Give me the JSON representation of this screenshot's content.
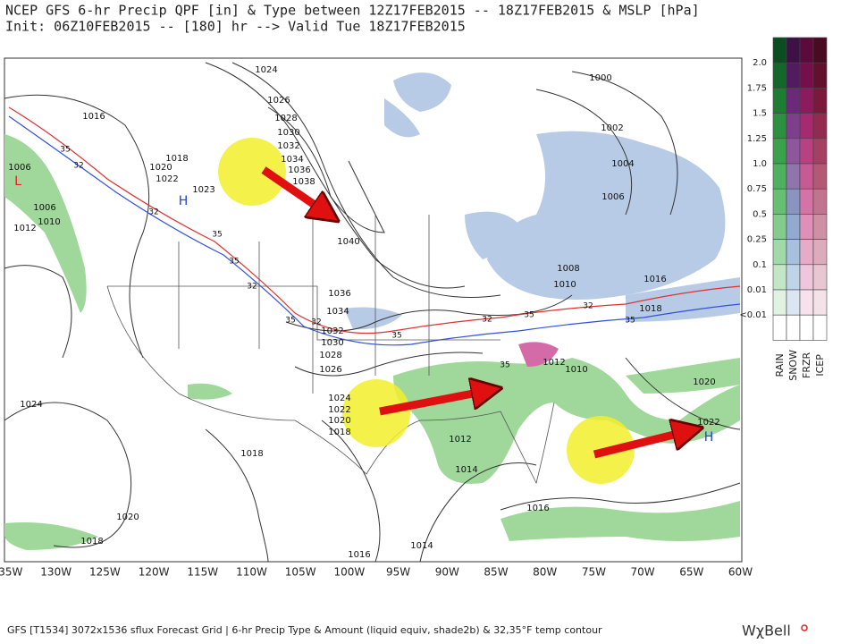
{
  "header": {
    "title": "NCEP GFS 6-hr Precip QPF [in] & Type between 12Z17FEB2015 -- 18Z17FEB2015 & MSLP [hPa]",
    "subtitle": "Init: 06Z10FEB2015 -- [180] hr --> Valid Tue 18Z17FEB2015"
  },
  "map": {
    "longitudes": [
      "135W",
      "130W",
      "125W",
      "120W",
      "115W",
      "110W",
      "105W",
      "100W",
      "95W",
      "90W",
      "85W",
      "80W",
      "75W",
      "70W",
      "65W",
      "60W"
    ],
    "isobar_labels": [
      "1024",
      "1016",
      "1026",
      "1028",
      "1030",
      "1032",
      "1034",
      "1036",
      "1038",
      "1018",
      "1020",
      "1022",
      "1023",
      "1006",
      "1006",
      "1010",
      "1012",
      "1040",
      "1036",
      "1034",
      "1032",
      "1030",
      "1028",
      "1026",
      "1024",
      "1022",
      "1020",
      "1018",
      "1012",
      "1014",
      "1012",
      "1010",
      "1018",
      "1016",
      "1008",
      "1010",
      "1006",
      "1004",
      "1002",
      "1000",
      "1020",
      "1022",
      "1024",
      "1018",
      "1020",
      "1018",
      "1016",
      "1014",
      "1016"
    ],
    "pressure_centers": [
      "H",
      "H",
      "L"
    ],
    "temp_labels": [
      "35",
      "32",
      "32",
      "35",
      "35",
      "32",
      "35",
      "32",
      "35",
      "32",
      "35",
      "32",
      "35",
      "35"
    ]
  },
  "legend": {
    "levels": [
      "2.0",
      "1.75",
      "1.5",
      "1.25",
      "1.0",
      "0.75",
      "0.5",
      "0.25",
      "0.1",
      "0.01",
      "<0.01"
    ],
    "types": [
      "RAIN",
      "SNOW",
      "FRZR",
      "ICEP"
    ]
  },
  "footer": {
    "text": "GFS [T1534] 3072x1536 sflux Forecast Grid | 6-hr Precip Type & Amount (liquid equiv, shade2b) & 32,35°F temp contour",
    "logo": "WχBell"
  }
}
